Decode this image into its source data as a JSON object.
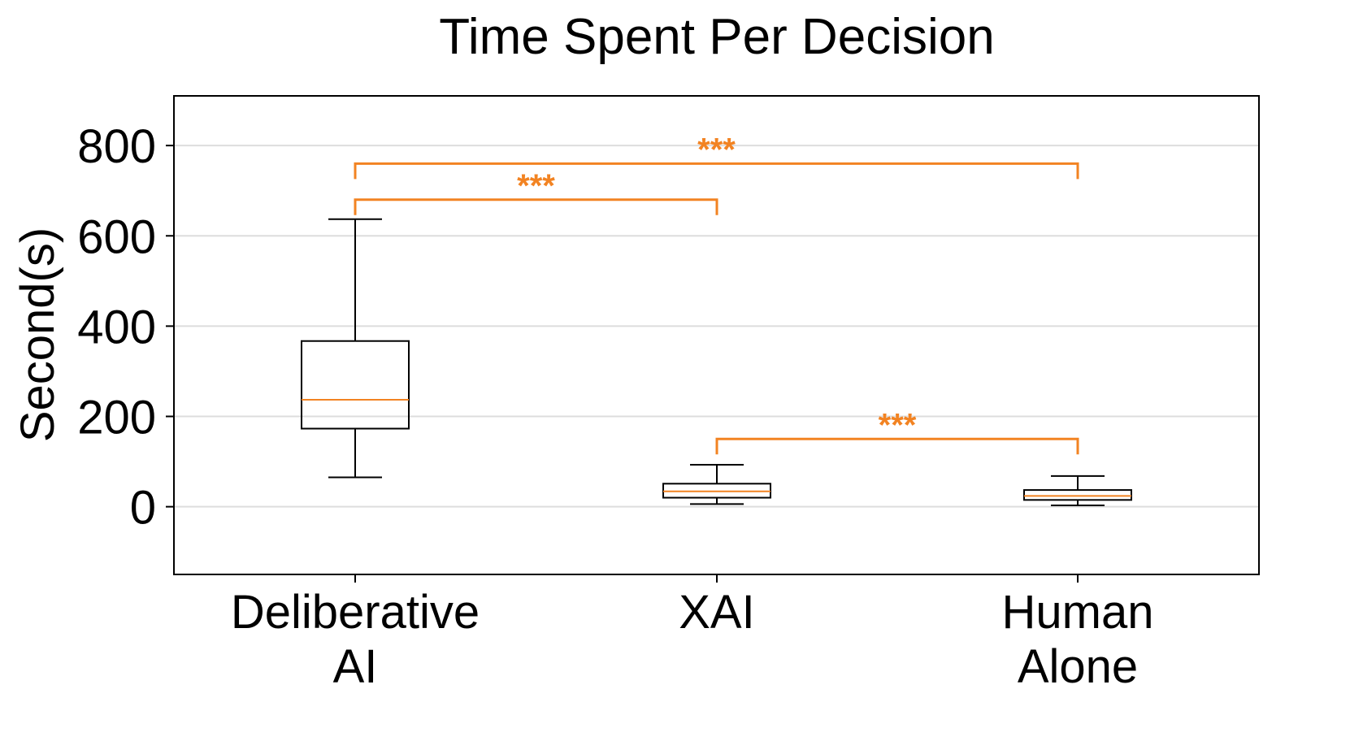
{
  "chart_data": {
    "type": "box",
    "title": "Time Spent Per Decision",
    "xlabel": "",
    "ylabel": "Second(s)",
    "ylim": [
      -150,
      910
    ],
    "yticks": [
      0,
      200,
      400,
      600,
      800
    ],
    "grid": "horizontal",
    "categories": [
      [
        "Deliberative",
        "AI"
      ],
      [
        "XAI"
      ],
      [
        "Human",
        "Alone"
      ]
    ],
    "boxes": [
      {
        "whisker_low": 65,
        "q1": 173,
        "median": 237,
        "q3": 367,
        "whisker_high": 637
      },
      {
        "whisker_low": 6,
        "q1": 20,
        "median": 34,
        "q3": 51,
        "whisker_high": 93
      },
      {
        "whisker_low": 3,
        "q1": 15,
        "median": 24,
        "q3": 37,
        "whisker_high": 68
      }
    ],
    "significance": [
      {
        "from": 0,
        "to": 1,
        "y": 680,
        "label": "***"
      },
      {
        "from": 0,
        "to": 2,
        "y": 760,
        "label": "***"
      },
      {
        "from": 1,
        "to": 2,
        "y": 150,
        "label": "***"
      }
    ],
    "colors": {
      "box": "#000000",
      "median": "#f28322",
      "significance": "#f28322",
      "grid": "#dddddd"
    }
  }
}
